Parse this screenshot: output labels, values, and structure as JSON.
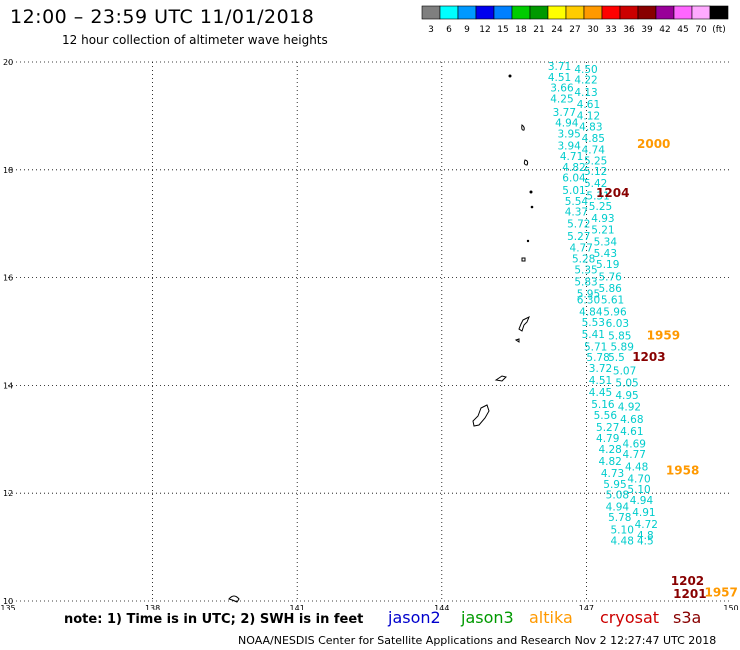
{
  "header": {
    "title": "12:00 – 23:59 UTC 11/01/2018",
    "subtitle": "12 hour collection of altimeter wave heights"
  },
  "colorbar": {
    "colors": [
      "#7f7f7f",
      "#00ffff",
      "#0099ff",
      "#0000ee",
      "#0080ff",
      "#00cc00",
      "#009900",
      "#ffff00",
      "#ffcc00",
      "#ff9900",
      "#ff0000",
      "#cc0000",
      "#880000",
      "#990099",
      "#ff66ff",
      "#ffaaff",
      "#000000"
    ],
    "labels": [
      "3",
      "6",
      "9",
      "12",
      "15",
      "18",
      "21",
      "24",
      "27",
      "30",
      "33",
      "36",
      "39",
      "42",
      "45",
      "70",
      "(ft)"
    ]
  },
  "footer": {
    "note": "note: 1) Time is in UTC; 2) SWH is in feet",
    "satellites": [
      {
        "name": "jason2",
        "color": "#0000cc"
      },
      {
        "name": "jason3",
        "color": "#009900"
      },
      {
        "name": "altika",
        "color": "#ff9900"
      },
      {
        "name": "cryosat",
        "color": "#cc0000"
      },
      {
        "name": "s3a",
        "color": "#880000"
      }
    ],
    "credit": "NOAA/NESDIS Center for Satellite Applications and Research     Nov  2 12:27:47 UTC 2018"
  },
  "chart_data": {
    "type": "scatter",
    "title": "12:00 – 23:59 UTC 11/01/2018",
    "subtitle": "12 hour collection of altimeter wave heights",
    "x_ticks": [
      "135",
      "138",
      "141",
      "144",
      "147",
      "150"
    ],
    "y_ticks": [
      "10",
      "12",
      "14",
      "16",
      "18",
      "20"
    ],
    "xlim": [
      135,
      150
    ],
    "ylim": [
      10,
      20
    ],
    "grid": true,
    "value_color": "#00cccc",
    "units": "ft",
    "series": [
      {
        "name": "jason2",
        "values": [
          {
            "x": 146.2,
            "y": 19.85,
            "v": "3.71"
          },
          {
            "x": 146.75,
            "y": 19.8,
            "v": "4.50"
          },
          {
            "x": 146.2,
            "y": 19.65,
            "v": "4.51"
          },
          {
            "x": 146.75,
            "y": 19.6,
            "v": "4.22"
          },
          {
            "x": 146.25,
            "y": 19.45,
            "v": "3.66"
          },
          {
            "x": 146.75,
            "y": 19.37,
            "v": "4.13"
          },
          {
            "x": 146.25,
            "y": 19.25,
            "v": "4.25"
          },
          {
            "x": 146.8,
            "y": 19.15,
            "v": "4.61"
          },
          {
            "x": 146.3,
            "y": 19.0,
            "v": "3.77"
          },
          {
            "x": 146.8,
            "y": 18.93,
            "v": "4.12"
          },
          {
            "x": 146.35,
            "y": 18.8,
            "v": "4.94"
          },
          {
            "x": 146.85,
            "y": 18.73,
            "v": "4.83"
          },
          {
            "x": 146.4,
            "y": 18.6,
            "v": "3.95"
          },
          {
            "x": 146.9,
            "y": 18.52,
            "v": "4.85"
          },
          {
            "x": 146.4,
            "y": 18.38,
            "v": "3.94"
          },
          {
            "x": 146.9,
            "y": 18.3,
            "v": "4.74"
          },
          {
            "x": 146.45,
            "y": 18.18,
            "v": "4.71"
          },
          {
            "x": 146.95,
            "y": 18.1,
            "v": "5.25"
          },
          {
            "x": 146.5,
            "y": 17.98,
            "v": "4.82"
          },
          {
            "x": 146.95,
            "y": 17.9,
            "v": "5.12"
          },
          {
            "x": 146.5,
            "y": 17.78,
            "v": "6.04"
          },
          {
            "x": 146.95,
            "y": 17.68,
            "v": "5.42"
          },
          {
            "x": 146.5,
            "y": 17.55,
            "v": "5.01"
          },
          {
            "x": 147.0,
            "y": 17.45,
            "v": "5.31"
          },
          {
            "x": 146.55,
            "y": 17.35,
            "v": "5.54"
          },
          {
            "x": 147.05,
            "y": 17.25,
            "v": "5.25"
          },
          {
            "x": 146.55,
            "y": 17.15,
            "v": "4.37"
          },
          {
            "x": 147.1,
            "y": 17.03,
            "v": "4.93"
          },
          {
            "x": 146.6,
            "y": 16.93,
            "v": "5.72"
          },
          {
            "x": 147.1,
            "y": 16.82,
            "v": "5.21"
          },
          {
            "x": 146.6,
            "y": 16.7,
            "v": "5.27"
          },
          {
            "x": 147.15,
            "y": 16.6,
            "v": "5.34"
          },
          {
            "x": 146.65,
            "y": 16.48,
            "v": "4.77"
          },
          {
            "x": 147.15,
            "y": 16.38,
            "v": "5.43"
          },
          {
            "x": 146.7,
            "y": 16.28,
            "v": "5.28"
          },
          {
            "x": 147.2,
            "y": 16.18,
            "v": "5.19"
          },
          {
            "x": 146.75,
            "y": 16.08,
            "v": "5.35"
          },
          {
            "x": 147.25,
            "y": 15.95,
            "v": "5.76"
          },
          {
            "x": 146.75,
            "y": 15.85,
            "v": "5.83"
          },
          {
            "x": 147.25,
            "y": 15.73,
            "v": "5.86"
          },
          {
            "x": 146.8,
            "y": 15.63,
            "v": "5.95"
          },
          {
            "x": 147.3,
            "y": 15.52,
            "v": "5.61"
          },
          {
            "x": 146.8,
            "y": 15.52,
            "v": "6.30"
          },
          {
            "x": 146.85,
            "y": 15.3,
            "v": "4.84"
          },
          {
            "x": 147.35,
            "y": 15.3,
            "v": "5.96"
          },
          {
            "x": 146.9,
            "y": 15.1,
            "v": "5.53"
          },
          {
            "x": 147.4,
            "y": 15.08,
            "v": "6.03"
          },
          {
            "x": 146.9,
            "y": 14.88,
            "v": "5.41"
          },
          {
            "x": 147.45,
            "y": 14.85,
            "v": "5.85"
          },
          {
            "x": 146.95,
            "y": 14.65,
            "v": "5.71"
          },
          {
            "x": 147.5,
            "y": 14.65,
            "v": "5.89"
          },
          {
            "x": 147.0,
            "y": 14.45,
            "v": "5.78"
          },
          {
            "x": 147.45,
            "y": 14.45,
            "v": "5.5"
          },
          {
            "x": 147.05,
            "y": 14.25,
            "v": "3.72"
          },
          {
            "x": 147.55,
            "y": 14.2,
            "v": "5.07"
          },
          {
            "x": 147.05,
            "y": 14.03,
            "v": "4.51"
          },
          {
            "x": 147.6,
            "y": 13.98,
            "v": "5.05"
          },
          {
            "x": 147.05,
            "y": 13.8,
            "v": "4.45"
          },
          {
            "x": 147.6,
            "y": 13.75,
            "v": "4.95"
          },
          {
            "x": 147.1,
            "y": 13.58,
            "v": "5.16"
          },
          {
            "x": 147.65,
            "y": 13.53,
            "v": "4.92"
          },
          {
            "x": 147.15,
            "y": 13.38,
            "v": "5.56"
          },
          {
            "x": 147.7,
            "y": 13.3,
            "v": "4.68"
          },
          {
            "x": 147.2,
            "y": 13.15,
            "v": "5.27"
          },
          {
            "x": 147.7,
            "y": 13.08,
            "v": "4.61"
          },
          {
            "x": 147.2,
            "y": 12.95,
            "v": "4.79"
          },
          {
            "x": 147.75,
            "y": 12.85,
            "v": "4.69"
          },
          {
            "x": 147.25,
            "y": 12.75,
            "v": "4.28"
          },
          {
            "x": 147.75,
            "y": 12.65,
            "v": "4.77"
          },
          {
            "x": 147.25,
            "y": 12.52,
            "v": "4.82"
          },
          {
            "x": 147.8,
            "y": 12.42,
            "v": "4.48"
          },
          {
            "x": 147.3,
            "y": 12.3,
            "v": "4.73"
          },
          {
            "x": 147.85,
            "y": 12.2,
            "v": "4.70"
          },
          {
            "x": 147.35,
            "y": 12.1,
            "v": "5.95"
          },
          {
            "x": 147.85,
            "y": 12.0,
            "v": "5.10"
          },
          {
            "x": 147.4,
            "y": 11.9,
            "v": "5.08"
          },
          {
            "x": 147.9,
            "y": 11.8,
            "v": "4.94"
          },
          {
            "x": 147.4,
            "y": 11.68,
            "v": "4.94"
          },
          {
            "x": 147.95,
            "y": 11.58,
            "v": "4.91"
          },
          {
            "x": 147.45,
            "y": 11.48,
            "v": "5.78"
          },
          {
            "x": 148.0,
            "y": 11.35,
            "v": "4.72"
          },
          {
            "x": 147.5,
            "y": 11.25,
            "v": "5.10"
          },
          {
            "x": 148.05,
            "y": 11.15,
            "v": "4.8"
          },
          {
            "x": 147.5,
            "y": 11.05,
            "v": "4.48"
          },
          {
            "x": 148.05,
            "y": 11.05,
            "v": "4.5"
          }
        ]
      }
    ],
    "time_labels": [
      {
        "x": 148.05,
        "y": 18.4,
        "label": "2000",
        "color": "#ff9900"
      },
      {
        "x": 147.2,
        "y": 17.5,
        "label": "1204",
        "color": "#880000"
      },
      {
        "x": 148.25,
        "y": 14.85,
        "label": "1959",
        "color": "#ff9900"
      },
      {
        "x": 147.95,
        "y": 14.45,
        "label": "1203",
        "color": "#880000"
      },
      {
        "x": 148.65,
        "y": 12.35,
        "label": "1958",
        "color": "#ff9900"
      },
      {
        "x": 148.75,
        "y": 10.3,
        "label": "1202",
        "color": "#880000"
      },
      {
        "x": 149.45,
        "y": 10.08,
        "label": "1957",
        "color": "#ff9900"
      },
      {
        "x": 148.8,
        "y": 10.06,
        "label": "1201",
        "color": "#880000"
      }
    ]
  }
}
